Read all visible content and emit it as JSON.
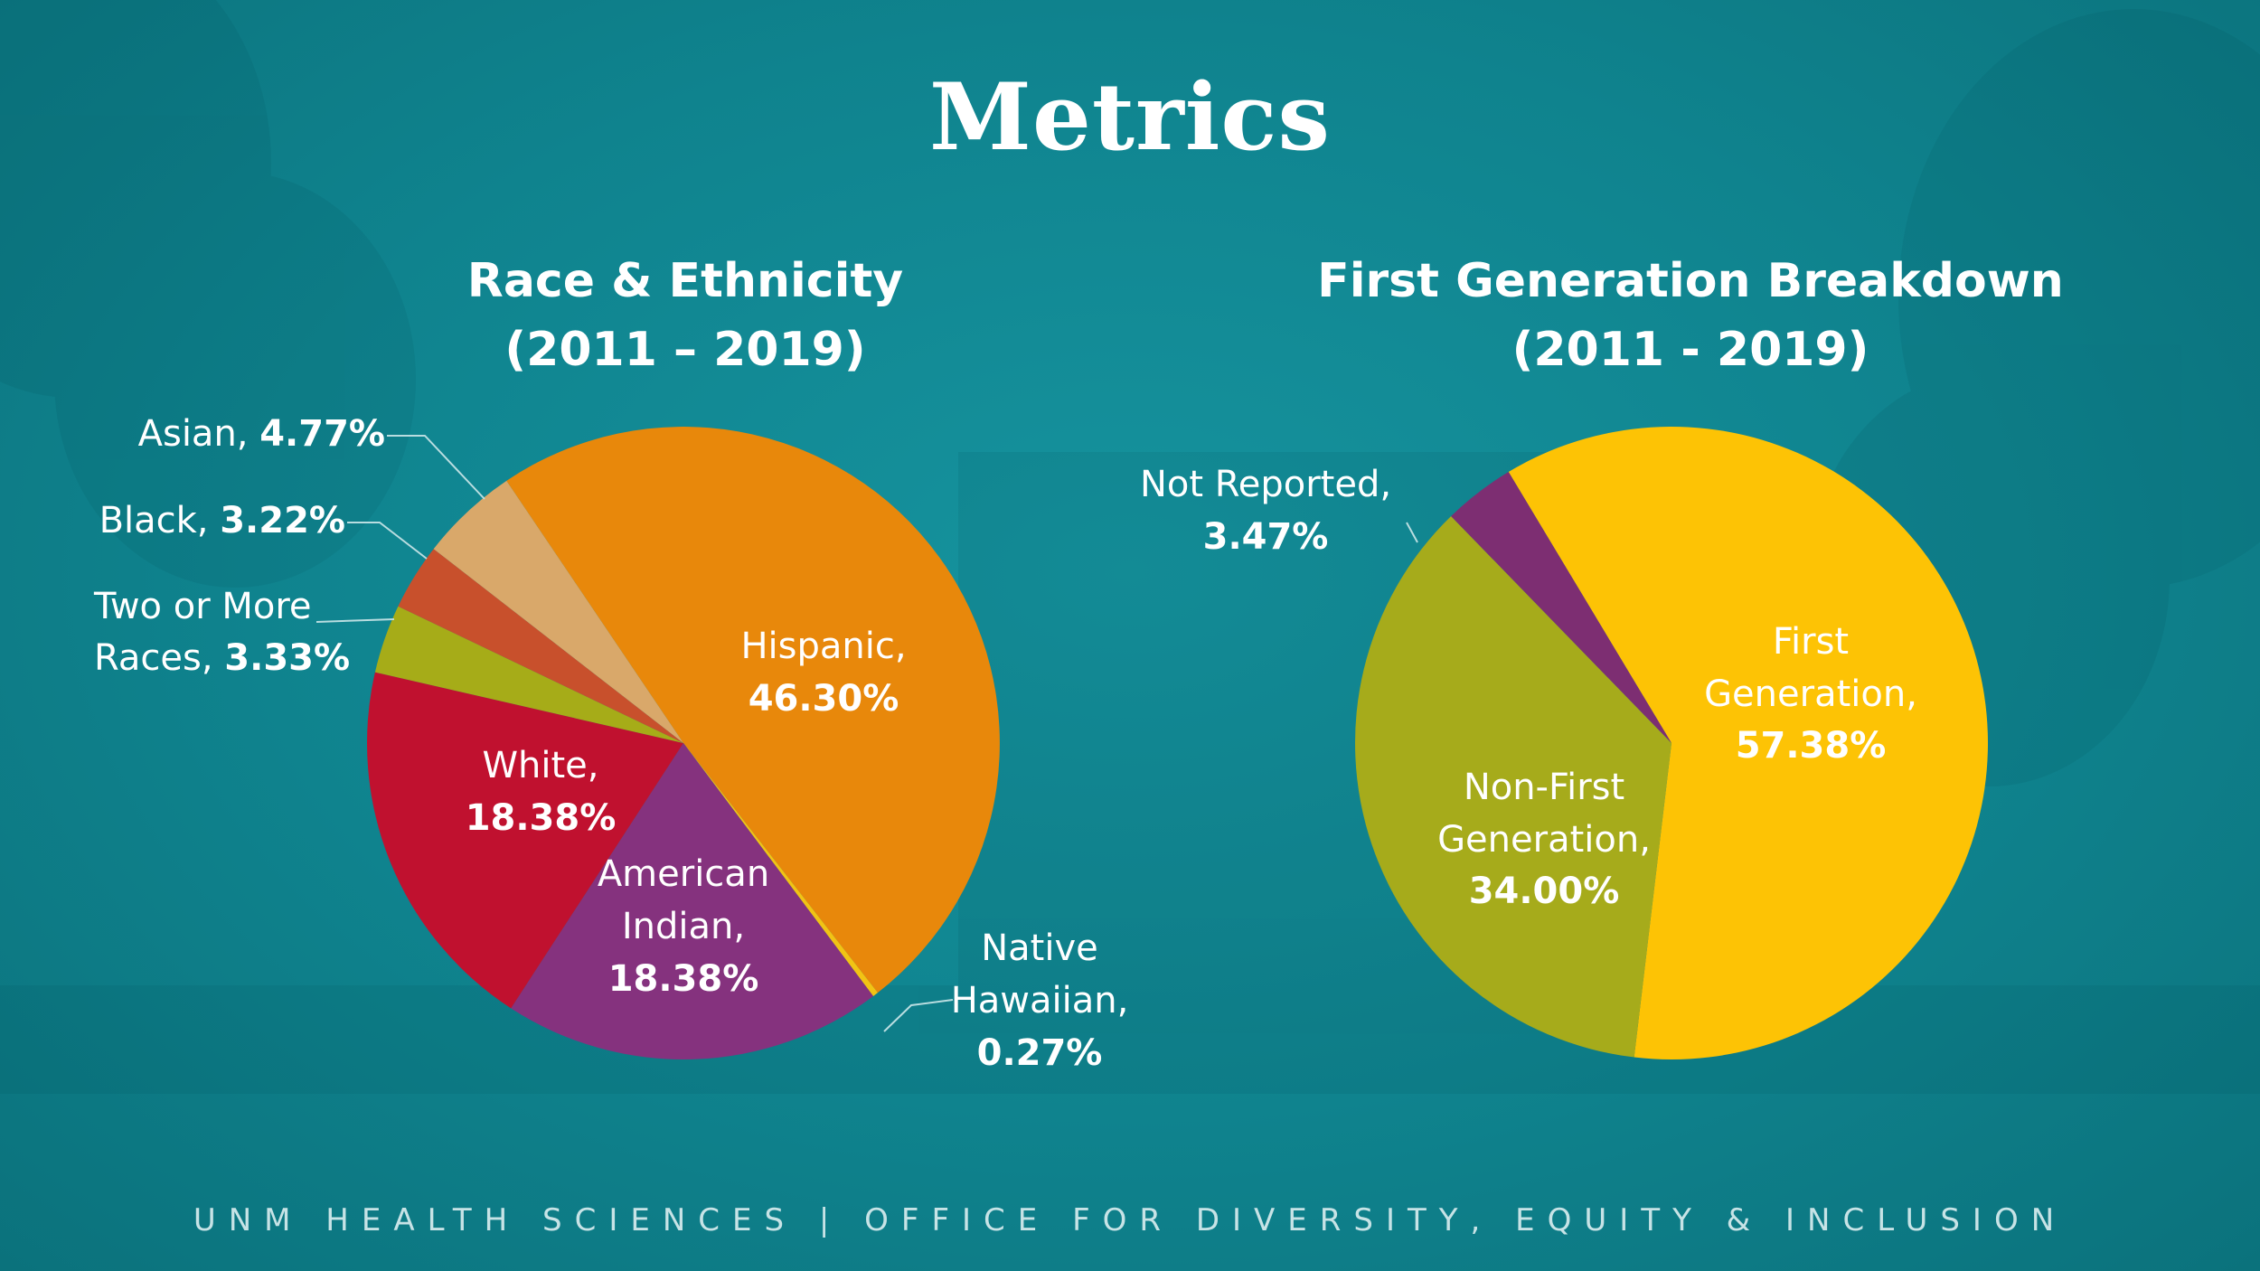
{
  "page": {
    "title": "Metrics",
    "footer": "UNM HEALTH SCIENCES  |  OFFICE FOR DIVERSITY, EQUITY & INCLUSION"
  },
  "colors": {
    "background": "#108a95",
    "text": "#ffffff",
    "leader": "#b9dde0"
  },
  "chart_data": [
    {
      "type": "pie",
      "title_line1": "Race & Ethnicity",
      "title_line2": "(2011 – 2019)",
      "slices": [
        {
          "label": "Hispanic",
          "value": 46.3,
          "value_text": "46.30%",
          "color": "#e8880b"
        },
        {
          "label": "Native Hawaiian",
          "value": 0.27,
          "value_text": "0.27%",
          "color": "#f2c314"
        },
        {
          "label": "American Indian",
          "value": 18.38,
          "value_text": "18.38%",
          "color": "#85327e"
        },
        {
          "label": "White",
          "value": 18.38,
          "value_text": "18.38%",
          "color": "#c0112f"
        },
        {
          "label": "Two or More Races",
          "value": 3.33,
          "value_text": "3.33%",
          "color": "#a6ac18"
        },
        {
          "label": "Black",
          "value": 3.22,
          "value_text": "3.22%",
          "color": "#c8502c"
        },
        {
          "label": "Asian",
          "value": 4.77,
          "value_text": "4.77%",
          "color": "#d9a86a"
        }
      ],
      "labels": {
        "hispanic": "Hispanic,",
        "native_1": "Native",
        "native_2": "Hawaiian,",
        "american_1": "American",
        "american_2": "Indian,",
        "white": "White,",
        "two_1": "Two or More",
        "two_2": "Races, ",
        "black": "Black, ",
        "asian": "Asian, "
      }
    },
    {
      "type": "pie",
      "title_line1": "First Generation Breakdown",
      "title_line2": "(2011 - 2019)",
      "slices": [
        {
          "label": "First Generation",
          "value": 57.38,
          "value_text": "57.38%",
          "color": "#fdc305"
        },
        {
          "label": "Non-First Generation",
          "value": 34.0,
          "value_text": "34.00%",
          "color": "#a6ab1b"
        },
        {
          "label": "Not Reported",
          "value": 3.47,
          "value_text": "3.47%",
          "color": "#7d2e72"
        }
      ],
      "labels": {
        "first_1": "First",
        "first_2": "Generation,",
        "nonfirst_1": "Non-First",
        "nonfirst_2": "Generation,",
        "notrep": "Not Reported,"
      }
    }
  ]
}
